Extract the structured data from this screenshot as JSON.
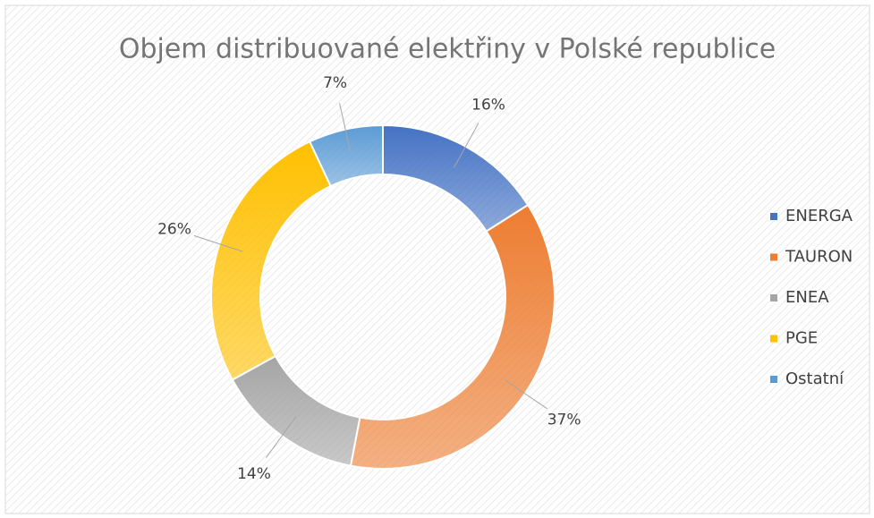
{
  "chart_data": {
    "type": "donut",
    "title": "Objem distribuované elektřiny v Polské republice",
    "categories": [
      "ENERGA",
      "TAURON",
      "ENEA",
      "PGE",
      "Ostatní"
    ],
    "values": [
      16,
      37,
      14,
      26,
      7
    ],
    "value_labels": [
      "16%",
      "37%",
      "14%",
      "26%",
      "7%"
    ],
    "colors": [
      "#4472c4",
      "#ed7d31",
      "#a5a5a5",
      "#ffc000",
      "#5b9bd5"
    ],
    "legend": "right"
  }
}
